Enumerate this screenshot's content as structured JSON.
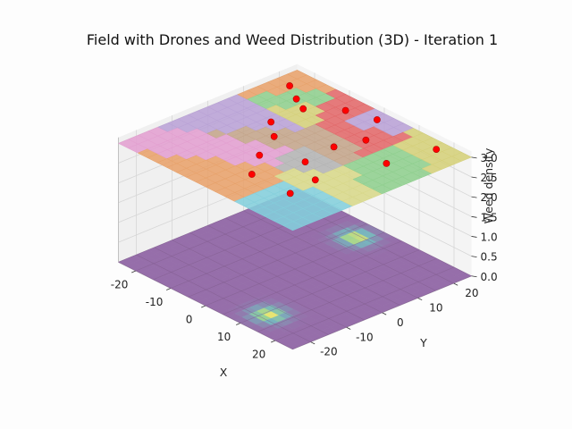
{
  "chart_data": {
    "type": "3d-surface",
    "title": "Field with Drones and Weed Distribution (3D) - Iteration 1",
    "xlabel": "X",
    "ylabel": "Y",
    "zlabel": "Weed density",
    "xlim": [
      -25,
      25
    ],
    "ylim": [
      -25,
      25
    ],
    "zlim": [
      0,
      3
    ],
    "x_ticks": [
      -20,
      -10,
      0,
      10,
      20
    ],
    "y_ticks": [
      -20,
      -10,
      0,
      10,
      20
    ],
    "z_ticks": [
      "0.0",
      "0.5",
      "1.0",
      "1.5",
      "2.0",
      "2.5",
      "3.0"
    ],
    "grid": true,
    "weed_surface": {
      "base_level": 0,
      "colormap": "viridis",
      "hotspots": [
        {
          "x": -2,
          "y": 19,
          "peak": 0.05
        },
        {
          "x": 11,
          "y": -18,
          "peak": 0.05
        }
      ]
    },
    "drone_plane": {
      "z": 3.0,
      "region_colors": [
        "#e8a26b",
        "#8fcf8e",
        "#d5d07a",
        "#e2696a",
        "#b9a2d6",
        "#c4a58b",
        "#e39fd0",
        "#b4b4b4",
        "#d8d88a",
        "#84cfdc"
      ]
    },
    "drones": [
      {
        "x": -21,
        "y": 19
      },
      {
        "x": -16,
        "y": 16
      },
      {
        "x": -12,
        "y": 14
      },
      {
        "x": -6,
        "y": 20
      },
      {
        "x": -12,
        "y": 5
      },
      {
        "x": -7,
        "y": 1
      },
      {
        "x": -3,
        "y": -7
      },
      {
        "x": 5,
        "y": -2
      },
      {
        "x": 12,
        "y": -6
      },
      {
        "x": 13,
        "y": -14
      },
      {
        "x": 2,
        "y": -14
      },
      {
        "x": 16,
        "y": 10
      },
      {
        "x": 18,
        "y": 22
      },
      {
        "x": 6,
        "y": 14
      },
      {
        "x": 1,
        "y": 22
      },
      {
        "x": 4,
        "y": 7
      }
    ],
    "drone_color": "#ff0000"
  }
}
